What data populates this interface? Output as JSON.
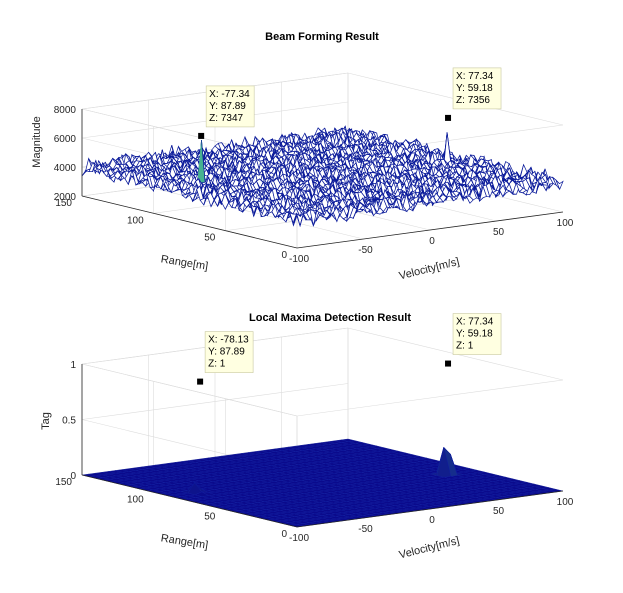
{
  "chart_data": [
    {
      "type": "surface",
      "title": "Beam Forming Result",
      "xlabel": "Velocity[m/s]",
      "ylabel": "Range[m]",
      "zlabel": "Magnitude",
      "xlim": [
        -100,
        100
      ],
      "ylim": [
        0,
        150
      ],
      "zlim": [
        2000,
        8000
      ],
      "xticks": [
        "-100",
        "-50",
        "0",
        "50",
        "100"
      ],
      "yticks": [
        "0",
        "50",
        "100",
        "150"
      ],
      "zticks": [
        "2000",
        "4000",
        "6000",
        "8000"
      ],
      "baseline_range": [
        3000,
        5000
      ],
      "colormap": [
        "#0a0a8c",
        "#1e2aa8",
        "#2e4fc8",
        "#3fae8e",
        "#7fd5a8"
      ],
      "peaks": [
        {
          "x": -77.34,
          "y": 87.89,
          "z": 7347
        },
        {
          "x": 77.34,
          "y": 59.18,
          "z": 7356
        }
      ],
      "datatips": [
        {
          "x_text": "X: -77.34",
          "y_text": "Y: 87.89",
          "z_text": "Z: 7347"
        },
        {
          "x_text": "X: 77.34",
          "y_text": "Y: 59.18",
          "z_text": "Z: 7356"
        }
      ]
    },
    {
      "type": "surface",
      "title": "Local Maxima Detection Result",
      "xlabel": "Velocity[m/s]",
      "ylabel": "Range[m]",
      "zlabel": "Tag",
      "xlim": [
        -100,
        100
      ],
      "ylim": [
        0,
        150
      ],
      "zlim": [
        0,
        1
      ],
      "xticks": [
        "-100",
        "-50",
        "0",
        "50",
        "100"
      ],
      "yticks": [
        "0",
        "50",
        "100",
        "150"
      ],
      "zticks": [
        "0",
        "0.5",
        "1"
      ],
      "baseline_value": 0,
      "colormap": [
        "#0a0a8c",
        "#3fae8e",
        "#9fe6c0"
      ],
      "peaks": [
        {
          "x": -78.13,
          "y": 87.89,
          "z": 1
        },
        {
          "x": 77.34,
          "y": 59.18,
          "z": 1
        }
      ],
      "datatips": [
        {
          "x_text": "X: -78.13",
          "y_text": "Y: 87.89",
          "z_text": "Z: 1"
        },
        {
          "x_text": "X: 77.34",
          "y_text": "Y: 59.18",
          "z_text": "Z: 1"
        }
      ]
    }
  ]
}
